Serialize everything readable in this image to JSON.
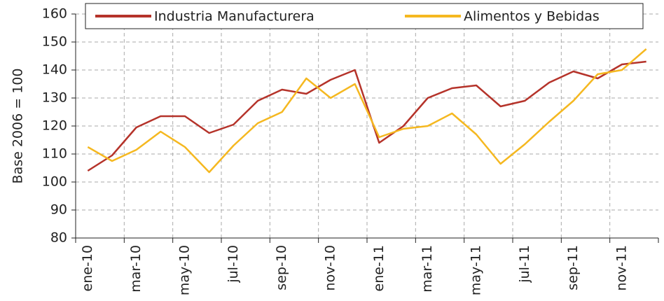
{
  "chart_data": {
    "type": "line",
    "ylabel": "Base 2006 = 100",
    "categories": [
      "ene-10",
      null,
      "mar-10",
      null,
      "may-10",
      null,
      "jul-10",
      null,
      "sep-10",
      null,
      "nov-10",
      null,
      "ene-11",
      null,
      "mar-11",
      null,
      "may-11",
      null,
      "jul-11",
      null,
      "sep-11",
      null,
      "nov-11",
      null
    ],
    "series": [
      {
        "name": "Industria Manufacturera",
        "color": "#b5332a",
        "values": [
          104,
          109.5,
          119.5,
          123.5,
          123.5,
          117.5,
          120.5,
          129,
          133,
          131.5,
          136.5,
          140,
          114,
          120,
          130,
          133.5,
          134.5,
          127,
          129,
          135.5,
          139.5,
          137,
          142,
          143
        ]
      },
      {
        "name": "Alimentos y Bebidas",
        "color": "#f5b820",
        "values": [
          112.5,
          107.5,
          111.5,
          118,
          112.5,
          103.5,
          113,
          121,
          125,
          137,
          130,
          135,
          116,
          119,
          120,
          124.5,
          117,
          106.5,
          113.5,
          121.5,
          129,
          138.5,
          140,
          147.5
        ]
      }
    ],
    "ylim": [
      80,
      160
    ],
    "yticks": [
      80,
      90,
      100,
      110,
      120,
      130,
      140,
      150,
      160
    ],
    "grid": true,
    "legend": "top"
  }
}
